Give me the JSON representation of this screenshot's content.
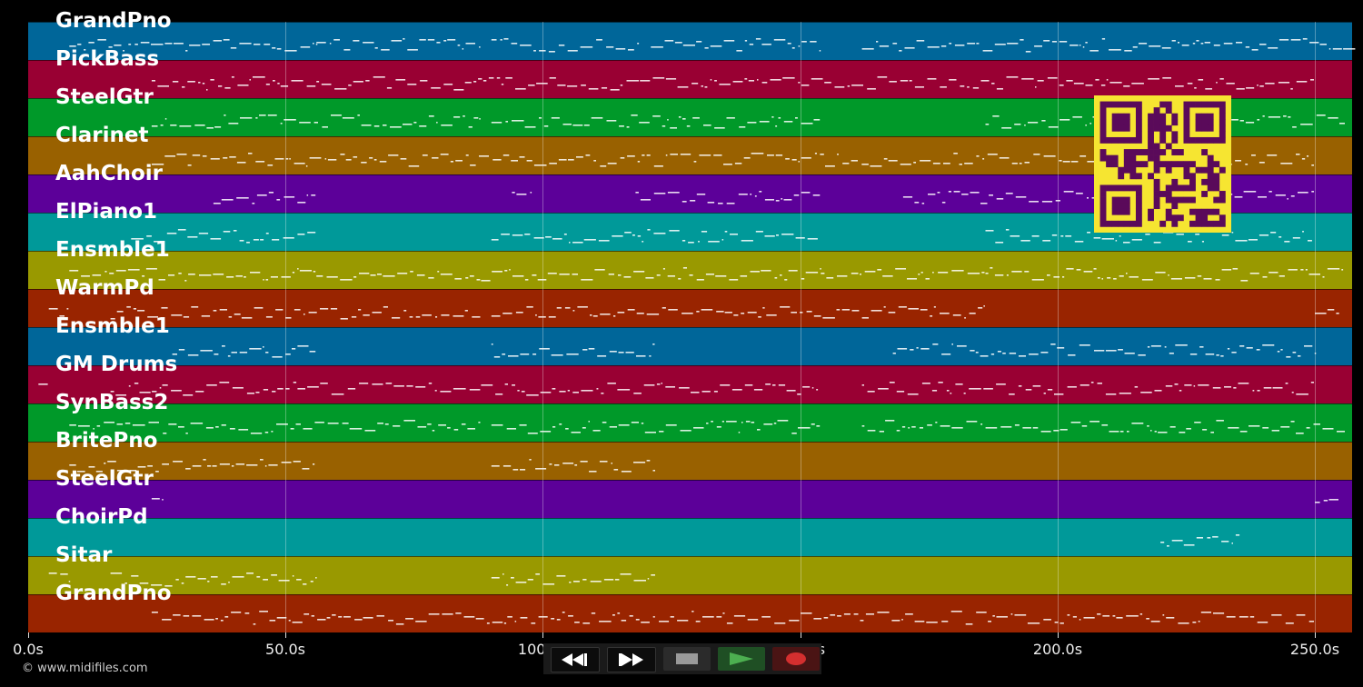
{
  "tracks": [
    {
      "name": "GrandPno",
      "color": "#006699"
    },
    {
      "name": "PickBass",
      "color": "#990033"
    },
    {
      "name": "SteelGtr",
      "color": "#009929"
    },
    {
      "name": "Clarinet",
      "color": "#996100"
    },
    {
      "name": "AahChoir",
      "color": "#5c0099"
    },
    {
      "name": "ElPiano1",
      "color": "#009999"
    },
    {
      "name": "Ensmble1",
      "color": "#999900"
    },
    {
      "name": "WarmPd",
      "color": "#992400"
    },
    {
      "name": "Ensmble1",
      "color": "#006699"
    },
    {
      "name": "GM Drums",
      "color": "#990033"
    },
    {
      "name": "SynBass2",
      "color": "#009929"
    },
    {
      "name": "BritePno",
      "color": "#996100"
    },
    {
      "name": "SteelGtr",
      "color": "#5c0099"
    },
    {
      "name": "ChoirPd",
      "color": "#009999"
    },
    {
      "name": "Sitar",
      "color": "#999900"
    },
    {
      "name": "GrandPno",
      "color": "#992400"
    }
  ],
  "time_axis": {
    "max_seconds": 258,
    "ticks": [
      {
        "value": 0,
        "label": "0.0s"
      },
      {
        "value": 50,
        "label": "50.0s"
      },
      {
        "value": 100,
        "label": "100.0s"
      },
      {
        "value": 150,
        "label": "150.0s"
      },
      {
        "value": 200,
        "label": "200.0s"
      },
      {
        "value": 250,
        "label": "250.0s"
      }
    ]
  },
  "note_segments": [
    {
      "track": 0,
      "spans": [
        [
          8,
          56
        ],
        [
          56,
          88
        ],
        [
          90,
          119
        ],
        [
          121,
          154
        ],
        [
          162,
          258
        ]
      ]
    },
    {
      "track": 1,
      "spans": [
        [
          24,
          250
        ]
      ]
    },
    {
      "track": 2,
      "spans": [
        [
          24,
          88
        ],
        [
          90,
          154
        ],
        [
          186,
          256
        ]
      ]
    },
    {
      "track": 3,
      "spans": [
        [
          24,
          250
        ]
      ]
    },
    {
      "track": 4,
      "spans": [
        [
          36,
          56
        ],
        [
          94,
          98
        ],
        [
          118,
          154
        ],
        [
          170,
          250
        ]
      ]
    },
    {
      "track": 5,
      "spans": [
        [
          20,
          56
        ],
        [
          90,
          154
        ],
        [
          186,
          250
        ]
      ]
    },
    {
      "track": 6,
      "spans": [
        [
          8,
          56
        ],
        [
          56,
          88
        ],
        [
          88,
          154
        ],
        [
          154,
          186
        ],
        [
          186,
          256
        ]
      ]
    },
    {
      "track": 7,
      "spans": [
        [
          4,
          8
        ],
        [
          16,
          88
        ],
        [
          90,
          186
        ],
        [
          250,
          255
        ]
      ]
    },
    {
      "track": 8,
      "spans": [
        [
          28,
          56
        ],
        [
          90,
          122
        ],
        [
          168,
          250
        ]
      ]
    },
    {
      "track": 9,
      "spans": [
        [
          2,
          4
        ],
        [
          16,
          88
        ],
        [
          88,
          154
        ],
        [
          162,
          250
        ]
      ]
    },
    {
      "track": 10,
      "spans": [
        [
          8,
          88
        ],
        [
          90,
          154
        ],
        [
          162,
          256
        ]
      ]
    },
    {
      "track": 11,
      "spans": [
        [
          8,
          56
        ],
        [
          90,
          122
        ]
      ]
    },
    {
      "track": 12,
      "spans": [
        [
          24,
          26
        ],
        [
          250,
          255
        ]
      ]
    },
    {
      "track": 13,
      "spans": [
        [
          220,
          236
        ]
      ]
    },
    {
      "track": 14,
      "spans": [
        [
          4,
          8
        ],
        [
          16,
          56
        ],
        [
          90,
          122
        ]
      ]
    },
    {
      "track": 15,
      "spans": [
        [
          24,
          250
        ]
      ]
    }
  ],
  "qr_code": {
    "label": "qr-code",
    "fg": "#5a0a5a",
    "bg": "#f6e531"
  },
  "copyright": "© www.midifiles.com",
  "transport": {
    "rewind": {
      "icon": "rewind-icon"
    },
    "fast_forward": {
      "icon": "fast-forward-icon"
    },
    "stop": {
      "icon": "stop-icon"
    },
    "play": {
      "icon": "play-icon",
      "color": "#4caf50"
    },
    "record": {
      "icon": "record-icon",
      "color": "#d32f2f"
    }
  }
}
